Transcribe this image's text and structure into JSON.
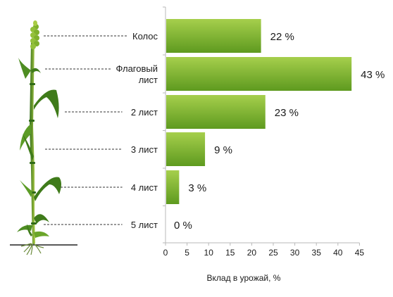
{
  "colors": {
    "bar_light": "#a6cf4c",
    "bar_dark": "#5e9a1f",
    "plant_light": "#b4d24c",
    "plant_dark": "#2f6a17",
    "axis": "#b8b8b8",
    "text": "#1a1a1a"
  },
  "chart_data": {
    "type": "bar",
    "orientation": "horizontal",
    "categories": [
      [
        "Колос"
      ],
      [
        "Флаговый",
        "лист"
      ],
      [
        "2 лист"
      ],
      [
        "3 лист"
      ],
      [
        "4 лист"
      ],
      [
        "5 лист"
      ]
    ],
    "values": [
      22,
      43,
      23,
      9,
      3,
      0
    ],
    "value_labels": [
      "22 %",
      "43 %",
      "23 %",
      "9 %",
      "3 %",
      "0 %"
    ],
    "xlabel": "Вклад в урожай, %",
    "xlim": [
      0,
      45
    ],
    "xticks": [
      0,
      5,
      10,
      15,
      20,
      25,
      30,
      35,
      40,
      45
    ],
    "grid": false,
    "legend": "none"
  }
}
